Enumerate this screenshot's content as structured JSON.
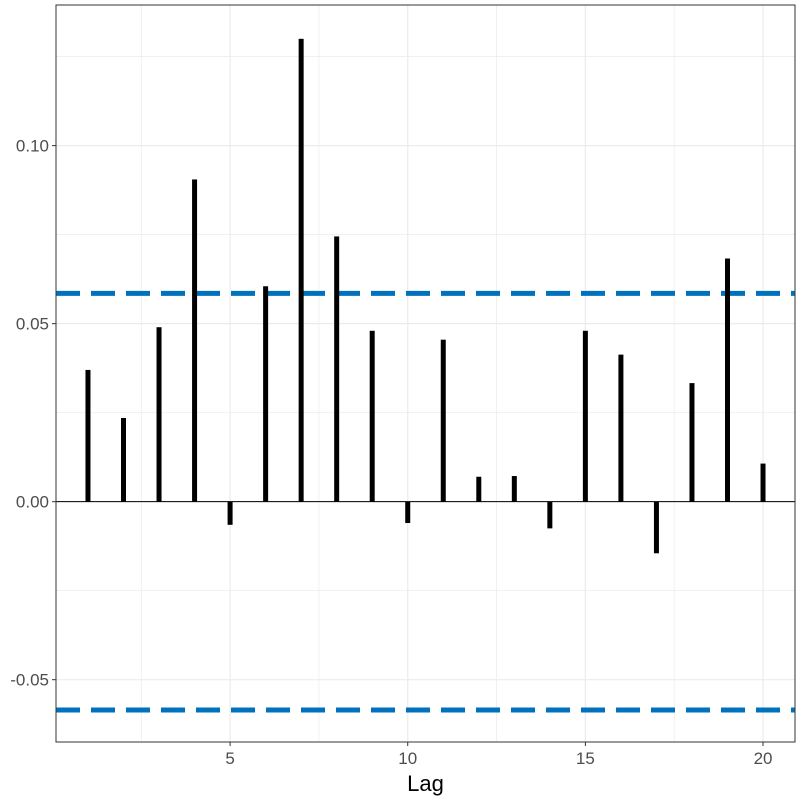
{
  "chart_data": {
    "type": "bar",
    "xlabel": "Lag",
    "ylabel": "",
    "x": [
      1,
      2,
      3,
      4,
      5,
      6,
      7,
      8,
      9,
      10,
      11,
      12,
      13,
      14,
      15,
      16,
      17,
      18,
      19,
      20
    ],
    "values": [
      0.037,
      0.0235,
      0.049,
      0.0905,
      -0.0065,
      0.0605,
      0.13,
      0.0745,
      0.048,
      -0.006,
      0.0455,
      0.007,
      0.0072,
      -0.0075,
      0.048,
      0.0413,
      -0.0145,
      0.0333,
      0.0683,
      0.0107
    ],
    "xlim": [
      0.1,
      20.9
    ],
    "ylim": [
      -0.0675,
      0.1395
    ],
    "x_ticks": [
      5,
      10,
      15,
      20
    ],
    "y_ticks": [
      -0.05,
      0.0,
      0.05,
      0.1
    ],
    "x_tick_labels": [
      "5",
      "10",
      "15",
      "20"
    ],
    "y_tick_labels": [
      "-0.05",
      "0.00",
      "0.05",
      "0.10"
    ],
    "confidence_bounds": [
      0.0585,
      -0.0585
    ],
    "grid": true,
    "colors": {
      "bars": "#000000",
      "bounds": "#0072BD",
      "grid": "#ebebeb",
      "zero_line": "#000000"
    }
  }
}
